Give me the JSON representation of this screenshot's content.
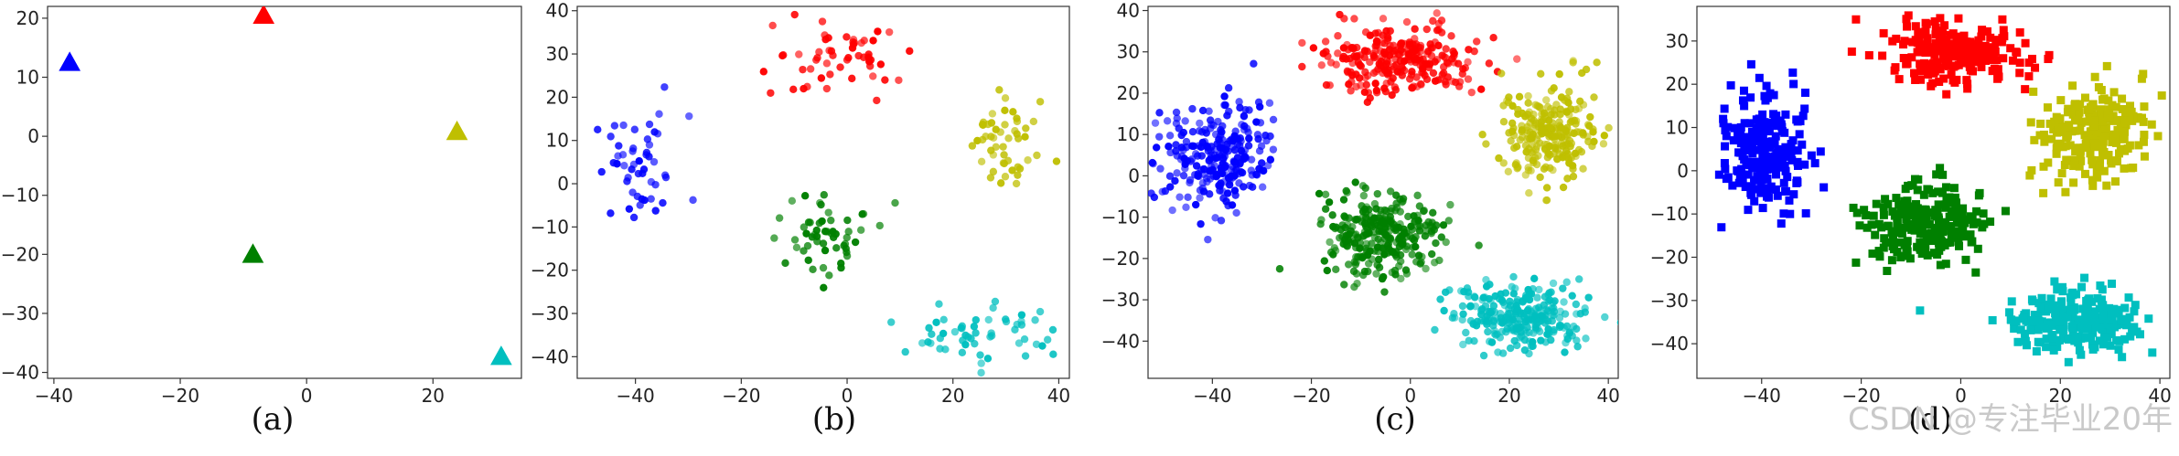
{
  "watermark": "CSDN @专注毕业20年",
  "chart_data": [
    {
      "type": "scatter",
      "caption": "(a)",
      "marker": "triangle",
      "xlim": [
        -41,
        34
      ],
      "ylim": [
        -41,
        22
      ],
      "xticks": [
        -40,
        -20,
        0,
        20
      ],
      "yticks": [
        -40,
        -30,
        -20,
        -10,
        0,
        10,
        20
      ],
      "series": [
        {
          "color": "#0000ff",
          "points": [
            [
              -37.5,
              12.5
            ]
          ]
        },
        {
          "color": "#ff0000",
          "points": [
            [
              -6.8,
              20.5
            ]
          ]
        },
        {
          "color": "#bfbf00",
          "points": [
            [
              23.8,
              0.8
            ]
          ]
        },
        {
          "color": "#008000",
          "points": [
            [
              -8.5,
              -20.0
            ]
          ]
        },
        {
          "color": "#00bfbf",
          "points": [
            [
              30.8,
              -37.3
            ]
          ]
        }
      ]
    },
    {
      "type": "scatter",
      "caption": "(b)",
      "marker": "circle",
      "xlim": [
        -51,
        42
      ],
      "ylim": [
        -45,
        41
      ],
      "xticks": [
        -40,
        -20,
        0,
        20,
        40
      ],
      "yticks": [
        -40,
        -30,
        -20,
        -10,
        0,
        10,
        20,
        30,
        40
      ],
      "series": [
        {
          "color": "#0000ff",
          "center": [
            -39,
            3
          ],
          "spread": [
            4.5,
            6.5
          ],
          "n": 50
        },
        {
          "color": "#ff0000",
          "center": [
            -2,
            29
          ],
          "spread": [
            6.5,
            3.8
          ],
          "n": 55
        },
        {
          "color": "#bfbf00",
          "center": [
            29,
            9
          ],
          "spread": [
            4,
            6
          ],
          "n": 50
        },
        {
          "color": "#008000",
          "center": [
            -5,
            -13
          ],
          "spread": [
            5,
            4.2
          ],
          "n": 55
        },
        {
          "color": "#00bfbf",
          "center": [
            25,
            -35
          ],
          "spread": [
            7,
            3.2
          ],
          "n": 55
        }
      ]
    },
    {
      "type": "scatter",
      "caption": "(c)",
      "marker": "circle",
      "xlim": [
        -53,
        42
      ],
      "ylim": [
        -49,
        41
      ],
      "xticks": [
        -40,
        -20,
        0,
        20,
        40
      ],
      "yticks": [
        -40,
        -30,
        -20,
        -10,
        0,
        10,
        20,
        30,
        40
      ],
      "series": [
        {
          "color": "#0000ff",
          "center": [
            -39,
            5
          ],
          "spread": [
            5.5,
            6.5
          ],
          "n": 260
        },
        {
          "color": "#ff0000",
          "center": [
            -2,
            28
          ],
          "spread": [
            7.5,
            4
          ],
          "n": 260
        },
        {
          "color": "#bfbf00",
          "center": [
            28,
            10
          ],
          "spread": [
            4.8,
            6
          ],
          "n": 240
        },
        {
          "color": "#008000",
          "center": [
            -6,
            -14
          ],
          "spread": [
            6,
            5
          ],
          "n": 280
        },
        {
          "color": "#00bfbf",
          "center": [
            23,
            -34
          ],
          "spread": [
            7,
            4
          ],
          "n": 260
        }
      ]
    },
    {
      "type": "scatter",
      "caption": "(d)",
      "marker": "square",
      "xlim": [
        -53,
        42
      ],
      "ylim": [
        -48,
        38
      ],
      "xticks": [
        -40,
        -20,
        0,
        20,
        40
      ],
      "yticks": [
        -40,
        -30,
        -20,
        -10,
        0,
        10,
        20,
        30
      ],
      "series": [
        {
          "color": "#0000ff",
          "center": [
            -39,
            5
          ],
          "spread": [
            4,
            6.5
          ],
          "n": 230
        },
        {
          "color": "#ff0000",
          "center": [
            -2,
            27
          ],
          "spread": [
            7,
            3.2
          ],
          "n": 230
        },
        {
          "color": "#bfbf00",
          "center": [
            26,
            9
          ],
          "spread": [
            5.5,
            5.5
          ],
          "n": 230
        },
        {
          "color": "#008000",
          "center": [
            -7,
            -12
          ],
          "spread": [
            6,
            4.5
          ],
          "n": 230
        },
        {
          "color": "#00bfbf",
          "center": [
            23,
            -35
          ],
          "spread": [
            6.5,
            3.5
          ],
          "n": 230
        }
      ]
    }
  ]
}
